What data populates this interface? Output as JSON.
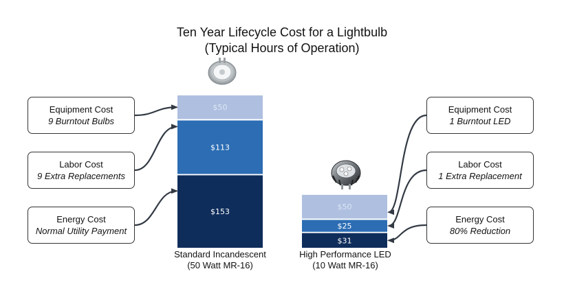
{
  "title": "Ten Year Lifecycle Cost for a Lightbulb",
  "subtitle": "(Typical Hours of Operation)",
  "colors": {
    "equipment": "#aebfe0",
    "labor": "#2c6db4",
    "energy": "#0f2d5b",
    "equipment_text": "#dde6f4",
    "bar_text": "#ffffff",
    "connector": "#333a44"
  },
  "icons": {
    "incandescent": "halogen-bulb-icon",
    "led": "led-bulb-icon"
  },
  "chart_data": {
    "type": "bar",
    "stacked": true,
    "categories": [
      "Standard Incandescent",
      "High Performance LED"
    ],
    "category_sublabels": [
      "(50 Watt MR-16)",
      "(10 Watt MR-16)"
    ],
    "series": [
      {
        "name": "Energy Cost",
        "values": [
          153,
          31
        ],
        "labels": [
          "$153",
          "$31"
        ]
      },
      {
        "name": "Labor Cost",
        "values": [
          113,
          25
        ],
        "labels": [
          "$113",
          "$25"
        ]
      },
      {
        "name": "Equipment Cost",
        "values": [
          50,
          50
        ],
        "labels": [
          "$50",
          "$50"
        ]
      }
    ],
    "title": "Ten Year Lifecycle Cost for a Lightbulb",
    "subtitle": "(Typical Hours of Operation)",
    "grid": false
  },
  "callouts": {
    "left": [
      {
        "title": "Equipment Cost",
        "detail": "9 Burntout Bulbs"
      },
      {
        "title": "Labor Cost",
        "detail": "9 Extra Replacements"
      },
      {
        "title": "Energy Cost",
        "detail": "Normal Utility Payment"
      }
    ],
    "right": [
      {
        "title": "Equipment Cost",
        "detail": "1 Burntout LED"
      },
      {
        "title": "Labor Cost",
        "detail": "1 Extra Replacement"
      },
      {
        "title": "Energy Cost",
        "detail": "80% Reduction"
      }
    ]
  }
}
